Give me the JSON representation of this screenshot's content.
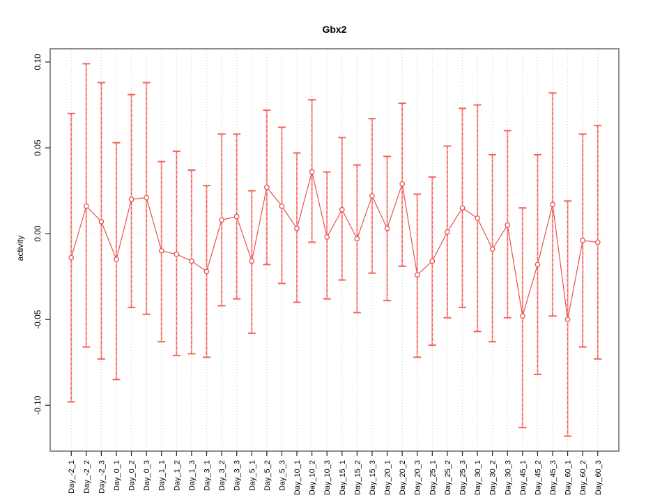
{
  "window": {
    "title": "Gbx2"
  },
  "colors": {
    "series": "#e8524a",
    "error_bar_fill": "#ffa39e",
    "error_bar_dash": "#e8564e",
    "error_bar_cap": "#f2635c",
    "gridline": "#c9c9c9",
    "zero_line": "#dcdcdc",
    "plot_border": "#8f8f8f",
    "tick": "#222222",
    "text": "#000000"
  },
  "chart_data": {
    "type": "line",
    "title": "Gbx2",
    "xlabel": "",
    "ylabel": "activity",
    "legend_position": "none",
    "grid": "vertical dotted gridline at each x; horizontal dotted line at y=0",
    "point_marker": "open-circle",
    "error_bars": true,
    "ylim": [
      -0.1267,
      0.1077
    ],
    "yticks": [
      0.1,
      0.05,
      0.0,
      -0.05,
      -0.1
    ],
    "ytick_labels": [
      "0.10",
      "0.05",
      "0.00",
      "-0.05",
      "-0.10"
    ],
    "categories": [
      "Day_-2_1",
      "Day_-2_2",
      "Day_-2_3",
      "Day_0_1",
      "Day_0_2",
      "Day_0_3",
      "Day_1_1",
      "Day_1_2",
      "Day_1_3",
      "Day_3_1",
      "Day_3_2",
      "Day_3_3",
      "Day_5_1",
      "Day_5_2",
      "Day_5_3",
      "Day_10_1",
      "Day_10_2",
      "Day_10_3",
      "Day_15_1",
      "Day_15_2",
      "Day_15_3",
      "Day_20_1",
      "Day_20_2",
      "Day_20_3",
      "Day_25_1",
      "Day_25_2",
      "Day_25_3",
      "Day_30_1",
      "Day_30_2",
      "Day_30_3",
      "Day_45_1",
      "Day_45_2",
      "Day_45_3",
      "Day_60_1",
      "Day_60_2",
      "Day_60_3"
    ],
    "series": [
      {
        "name": "activity",
        "values": [
          -0.014,
          0.016,
          0.007,
          -0.015,
          0.02,
          0.021,
          -0.01,
          -0.012,
          -0.016,
          -0.022,
          0.008,
          0.01,
          -0.016,
          0.027,
          0.016,
          0.003,
          0.036,
          -0.002,
          0.014,
          -0.003,
          0.022,
          0.003,
          0.029,
          -0.024,
          -0.016,
          0.001,
          0.015,
          0.009,
          -0.009,
          0.005,
          -0.048,
          -0.018,
          0.017,
          -0.05,
          -0.004,
          -0.005
        ],
        "lower": [
          -0.098,
          -0.066,
          -0.073,
          -0.085,
          -0.043,
          -0.047,
          -0.063,
          -0.071,
          -0.07,
          -0.072,
          -0.042,
          -0.038,
          -0.058,
          -0.018,
          -0.029,
          -0.04,
          -0.005,
          -0.038,
          -0.027,
          -0.046,
          -0.023,
          -0.039,
          -0.019,
          -0.072,
          -0.065,
          -0.049,
          -0.043,
          -0.057,
          -0.063,
          -0.049,
          -0.113,
          -0.082,
          -0.048,
          -0.118,
          -0.066,
          -0.073
        ],
        "upper": [
          0.07,
          0.099,
          0.088,
          0.053,
          0.081,
          0.088,
          0.042,
          0.048,
          0.037,
          0.028,
          0.058,
          0.058,
          0.025,
          0.072,
          0.062,
          0.047,
          0.078,
          0.036,
          0.056,
          0.04,
          0.067,
          0.045,
          0.076,
          0.023,
          0.033,
          0.051,
          0.073,
          0.075,
          0.046,
          0.06,
          0.015,
          0.046,
          0.082,
          0.019,
          0.058,
          0.063
        ]
      }
    ]
  }
}
